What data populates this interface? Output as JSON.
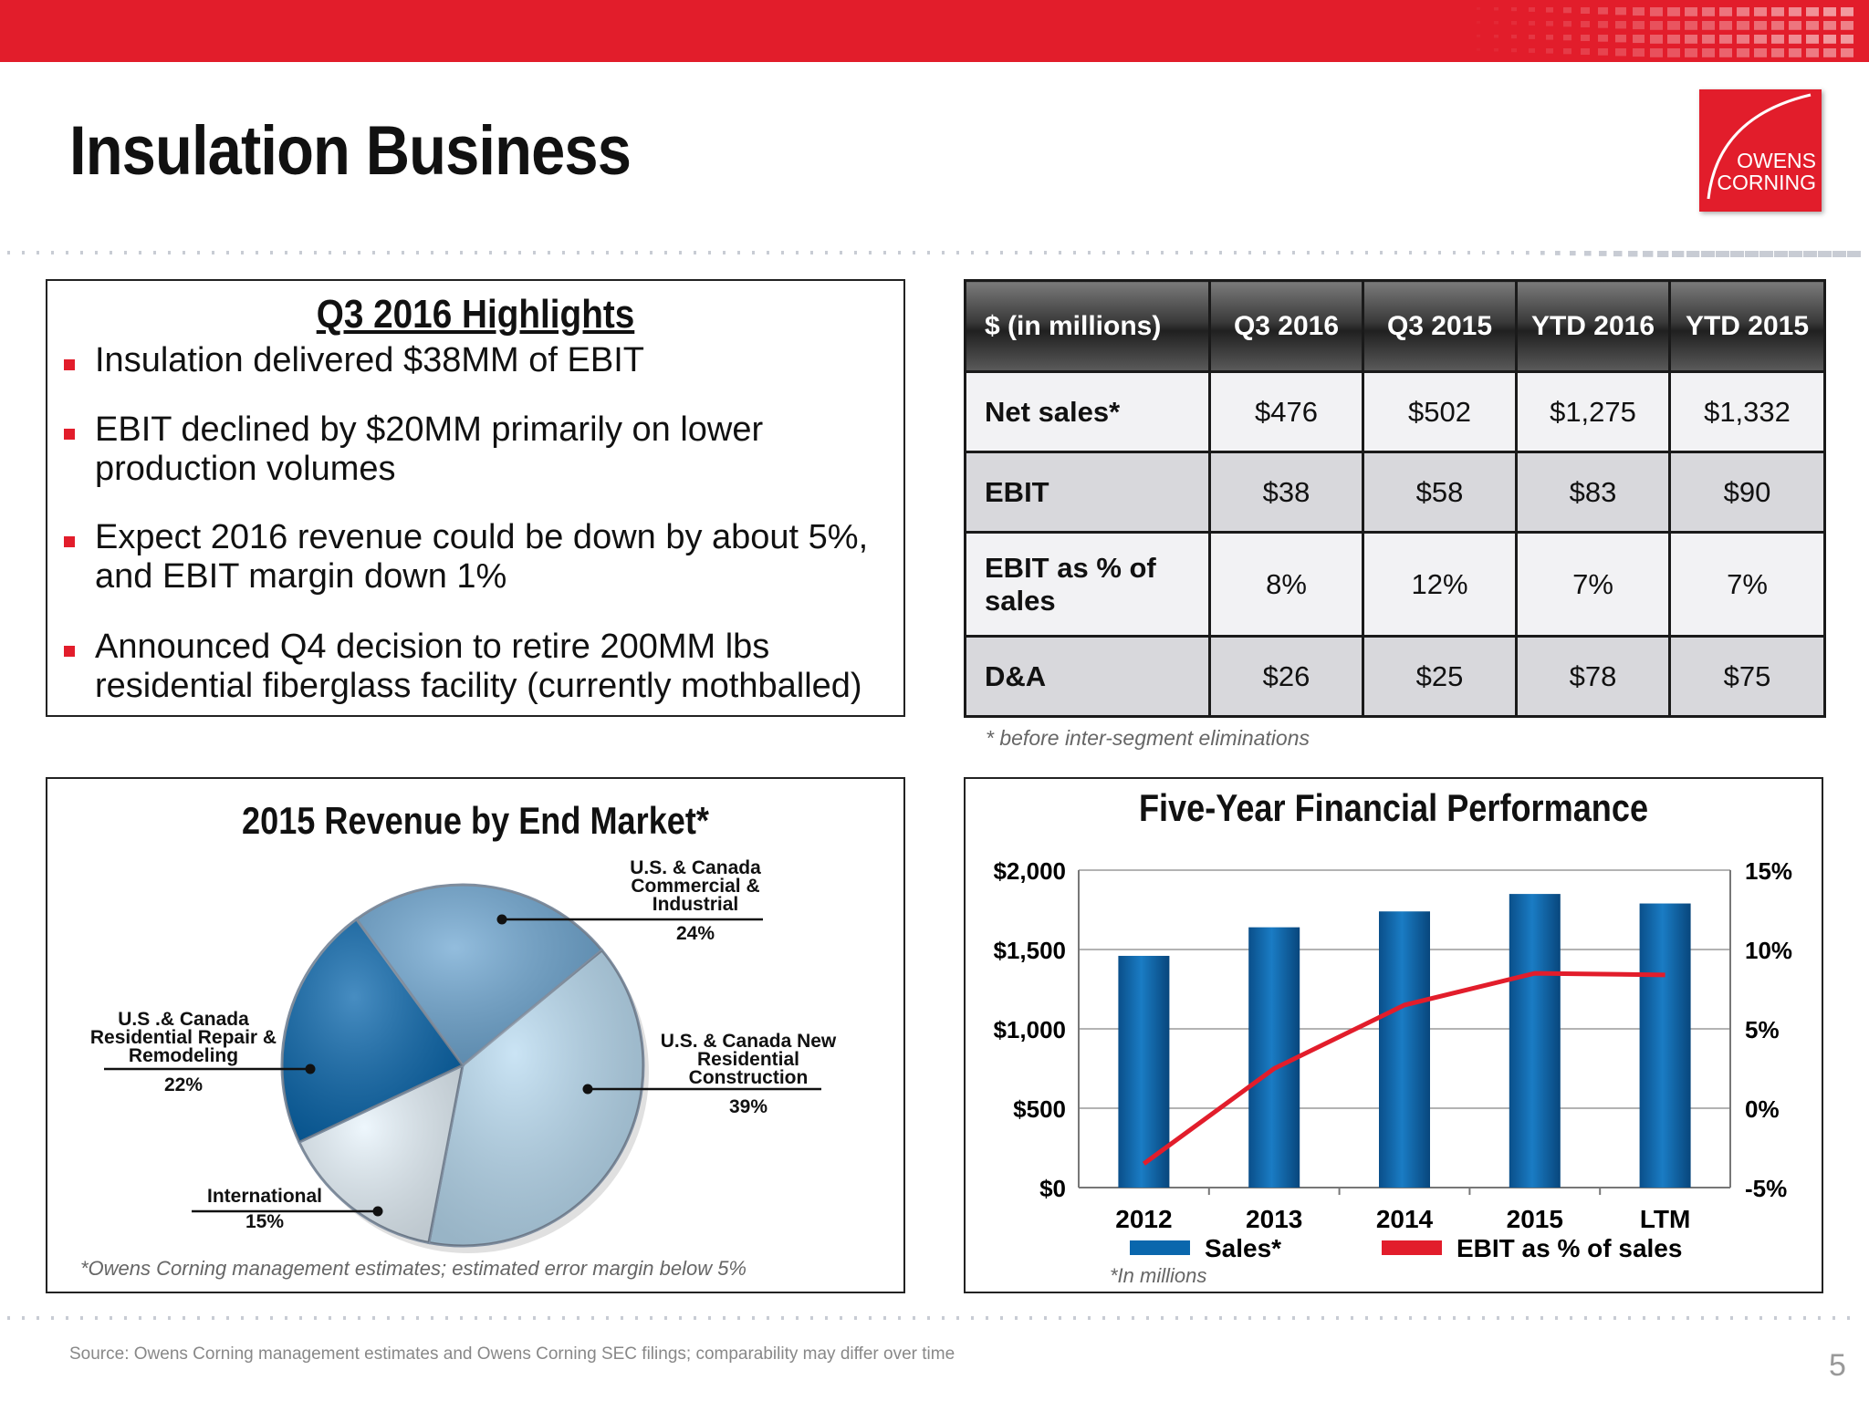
{
  "slide": {
    "title": "Insulation Business",
    "page_number": "5",
    "source": "Source: Owens Corning management estimates and Owens Corning SEC filings; comparability may differ over time",
    "accent_color": "#e21d2b"
  },
  "logo": {
    "line1": "OWENS",
    "line2": "CORNING"
  },
  "highlights": {
    "title": "Q3 2016 Highlights",
    "bullets": [
      "Insulation delivered $38MM of EBIT",
      "EBIT declined by $20MM primarily on lower production volumes",
      "Expect 2016 revenue could be down by about 5%, and EBIT margin down 1%",
      "Announced Q4 decision to retire 200MM lbs residential fiberglass facility (currently mothballed)"
    ]
  },
  "fin_table": {
    "headers": [
      "$ (in millions)",
      "Q3 2016",
      "Q3 2015",
      "YTD 2016",
      "YTD 2015"
    ],
    "rows": [
      {
        "label": "Net sales*",
        "values": [
          "$476",
          "$502",
          "$1,275",
          "$1,332"
        ]
      },
      {
        "label": "EBIT",
        "values": [
          "$38",
          "$58",
          "$83",
          "$90"
        ]
      },
      {
        "label": "EBIT as % of sales",
        "values": [
          "8%",
          "12%",
          "7%",
          "7%"
        ]
      },
      {
        "label": "D&A",
        "values": [
          "$26",
          "$25",
          "$78",
          "$75"
        ]
      }
    ],
    "note": "* before inter-segment eliminations"
  },
  "pie": {
    "note": "*Owens Corning management estimates; estimated error margin below 5%"
  },
  "bar": {
    "note": "*In millions"
  },
  "chart_data": [
    {
      "type": "pie",
      "title": "2015 Revenue by End Market*",
      "slices": [
        {
          "label": "U.S. & Canada Commercial & Industrial",
          "percent_label": "24%",
          "value": 24,
          "color": "#6fa7d2"
        },
        {
          "label": "U.S. & Canada New Residential Construction",
          "percent_label": "39%",
          "value": 39,
          "color": "#b9dbf1"
        },
        {
          "label": "International",
          "percent_label": "15%",
          "value": 15,
          "color": "#e8f4fc"
        },
        {
          "label": "U.S .& Canada Residential Repair & Remodeling",
          "percent_label": "22%",
          "value": 22,
          "color": "#0a67ad"
        }
      ]
    },
    {
      "type": "bar",
      "title": "Five-Year Financial Performance",
      "categories": [
        "2012",
        "2013",
        "2014",
        "2015",
        "LTM"
      ],
      "series": [
        {
          "name": "Sales*",
          "axis": "left",
          "values": [
            1460,
            1640,
            1740,
            1850,
            1790
          ],
          "color": "#0a67ad"
        },
        {
          "name": "EBIT as % of sales",
          "axis": "right",
          "type": "line",
          "values": [
            -3.5,
            2.5,
            6.5,
            8.5,
            8.4
          ],
          "color": "#e21d2b"
        }
      ],
      "yticks_left": [
        "$0",
        "$500",
        "$1,000",
        "$1,500",
        "$2,000"
      ],
      "ylim_left": [
        0,
        2000
      ],
      "yticks_right": [
        "-5%",
        "0%",
        "5%",
        "10%",
        "15%"
      ],
      "ylim_right": [
        -5,
        15
      ],
      "grid": true,
      "legend_position": "bottom"
    }
  ]
}
